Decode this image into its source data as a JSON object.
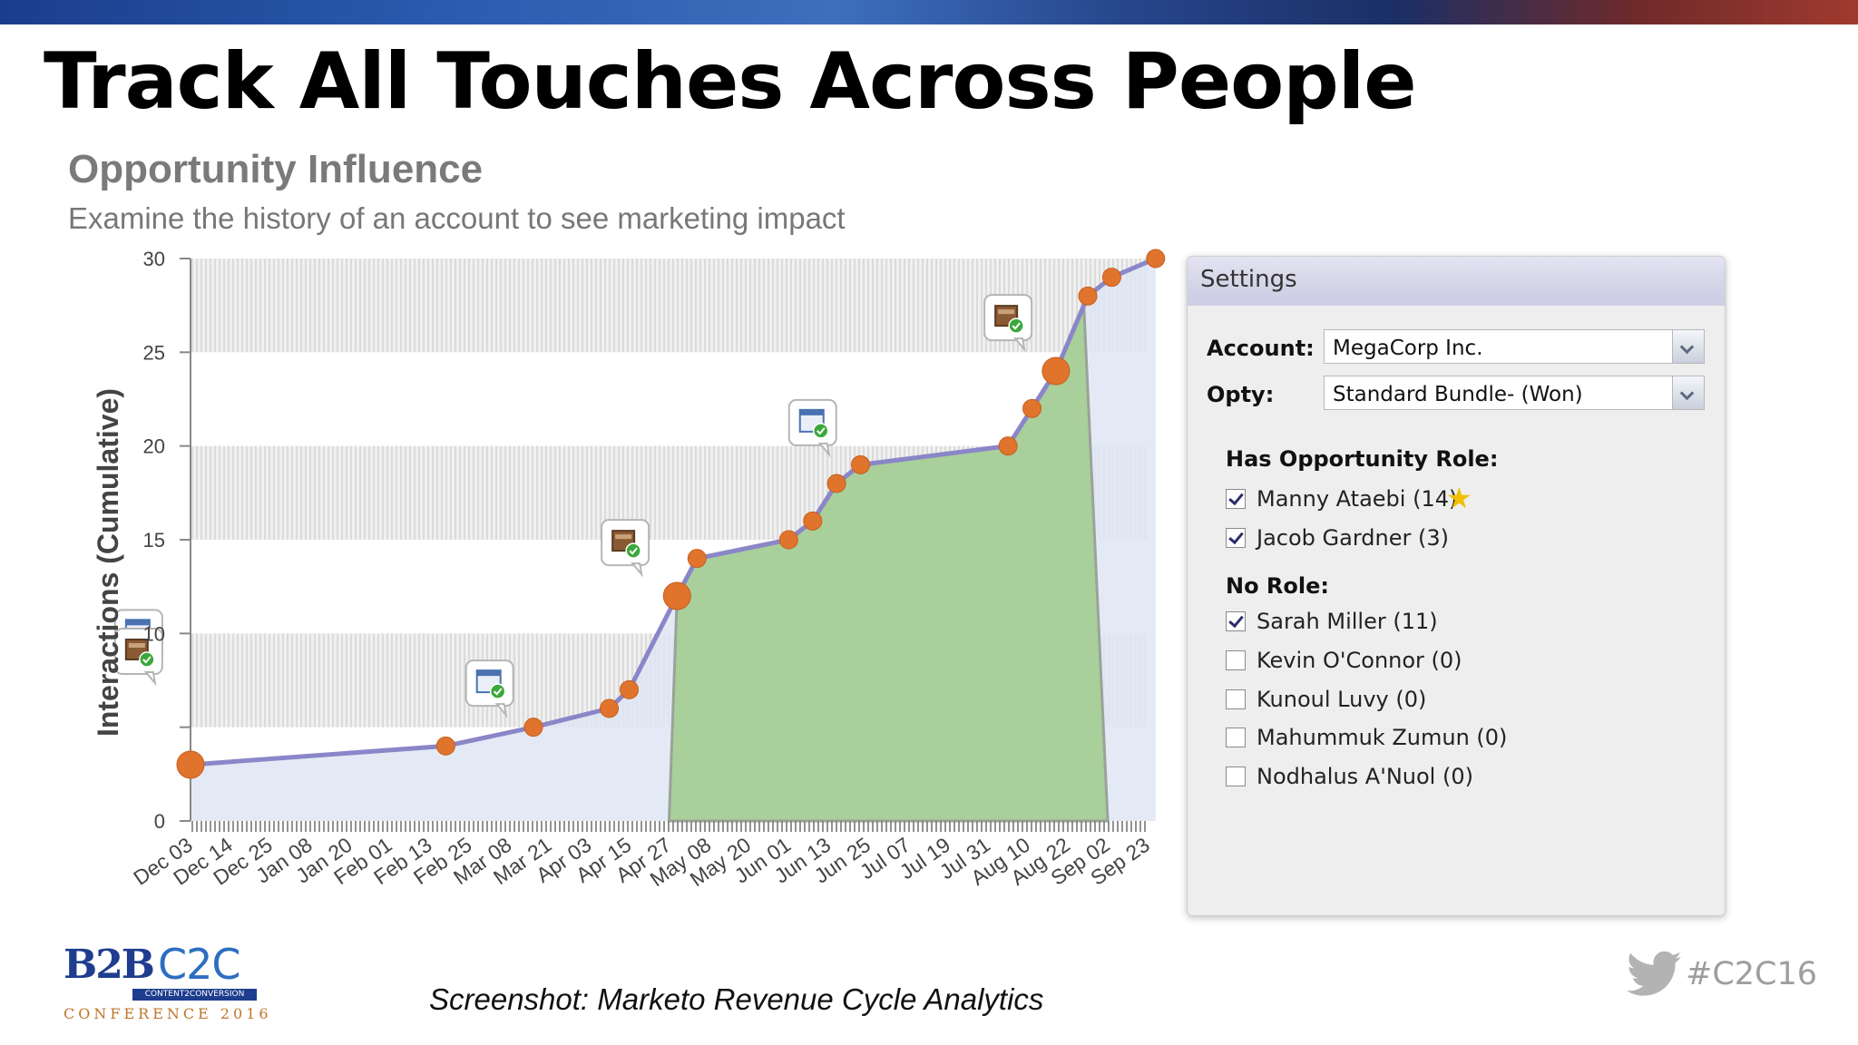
{
  "slide": {
    "title": "Track All Touches Across People",
    "caption": "Screenshot: Marketo Revenue Cycle Analytics",
    "hashtag": "#C2C16",
    "logo": {
      "b2b": "B2B",
      "c2c": "C2C",
      "bar": "CONTENT2CONVERSION",
      "conference": "CONFERENCE 2016"
    },
    "icons": [
      "twitter-bird-icon"
    ]
  },
  "chart_data": {
    "type": "area",
    "title": "Opportunity Influence",
    "subtitle": "Examine the history of an account to see marketing impact",
    "ylabel": "Interactions (Cumulative)",
    "ylim": [
      0,
      30
    ],
    "yticks": [
      "0",
      "",
      "10",
      "15",
      "20",
      "25",
      "30"
    ],
    "ytick_values": [
      0,
      5,
      10,
      15,
      20,
      25,
      30
    ],
    "categories": [
      "Dec 03",
      "Dec 14",
      "Dec 25",
      "Jan 08",
      "Jan 20",
      "Feb 01",
      "Feb 13",
      "Feb 25",
      "Mar 08",
      "Mar 21",
      "Apr 03",
      "Apr 15",
      "Apr 27",
      "May 08",
      "May 20",
      "Jun 01",
      "Jun 13",
      "Jun 25",
      "Jul 07",
      "Jul 19",
      "Jul 31",
      "Aug 10",
      "Aug 22",
      "Sep 02",
      "Sep 23"
    ],
    "series": [
      {
        "points": [
          {
            "x": 0.0,
            "y": 3
          },
          {
            "x": 6.4,
            "y": 4
          },
          {
            "x": 8.6,
            "y": 5
          },
          {
            "x": 10.5,
            "y": 6
          },
          {
            "x": 11.0,
            "y": 7
          },
          {
            "x": 12.2,
            "y": 12
          },
          {
            "x": 12.7,
            "y": 14
          },
          {
            "x": 15.0,
            "y": 15
          },
          {
            "x": 15.6,
            "y": 16
          },
          {
            "x": 16.2,
            "y": 18
          },
          {
            "x": 16.8,
            "y": 19
          },
          {
            "x": 20.5,
            "y": 20
          },
          {
            "x": 21.1,
            "y": 22
          },
          {
            "x": 21.7,
            "y": 24
          },
          {
            "x": 22.5,
            "y": 28
          },
          {
            "x": 23.1,
            "y": 29
          },
          {
            "x": 24.2,
            "y": 30
          }
        ],
        "large_markers": [
          0,
          5,
          13
        ],
        "color": "#8a86c8",
        "marker_color": "#e0742d"
      }
    ],
    "opportunity_window": {
      "start_x": 12.2,
      "end_x": 23.0,
      "fill": "#a9cf9b"
    },
    "background_fill": "#dfe6f3",
    "grid_bands": [
      [
        5,
        10
      ],
      [
        15,
        20
      ],
      [
        25,
        30
      ]
    ],
    "touch_icons": [
      {
        "x": -1.3,
        "y": 10,
        "kind": "calendar-icon"
      },
      {
        "x": -1.3,
        "y": 9,
        "kind": "package-icon"
      },
      {
        "x": 7.5,
        "y": 7.3,
        "kind": "calendar-icon"
      },
      {
        "x": 10.9,
        "y": 14.8,
        "kind": "package-icon"
      },
      {
        "x": 15.6,
        "y": 21.2,
        "kind": "calendar-icon"
      },
      {
        "x": 20.5,
        "y": 26.8,
        "kind": "package-icon"
      }
    ]
  },
  "settings": {
    "title": "Settings",
    "account_label": "Account:",
    "account_value": "MegaCorp Inc.",
    "opty_label": "Opty:",
    "opty_value": "Standard Bundle- (Won)",
    "role_heading": "Has Opportunity Role:",
    "role_people": [
      {
        "name": "Manny Ataebi (14)",
        "checked": true,
        "starred": true
      },
      {
        "name": "Jacob Gardner (3)",
        "checked": true
      }
    ],
    "norole_heading": "No Role:",
    "norole_people": [
      {
        "name": "Sarah Miller (11)",
        "checked": true
      },
      {
        "name": "Kevin O'Connor (0)",
        "checked": false
      },
      {
        "name": "Kunoul Luvy (0)",
        "checked": false
      },
      {
        "name": "Mahummuk Zumun (0)",
        "checked": false
      },
      {
        "name": "Nodhalus A'Nuol (0)",
        "checked": false
      }
    ]
  }
}
